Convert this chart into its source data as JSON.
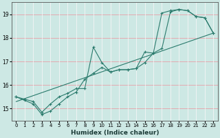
{
  "title": "",
  "xlabel": "Humidex (Indice chaleur)",
  "background_color": "#cde8e4",
  "line_color": "#2a7a6c",
  "grid_color": "#f0c0c8",
  "xlim": [
    -0.5,
    23.5
  ],
  "ylim": [
    14.5,
    19.5
  ],
  "xticks": [
    0,
    1,
    2,
    3,
    4,
    5,
    6,
    7,
    8,
    9,
    10,
    11,
    12,
    13,
    14,
    15,
    16,
    17,
    18,
    19,
    20,
    21,
    22,
    23
  ],
  "yticks": [
    15,
    16,
    17,
    18,
    19
  ],
  "series1_x": [
    0,
    1,
    2,
    3,
    4,
    5,
    6,
    7,
    8,
    9,
    10,
    11,
    12,
    13,
    14,
    15,
    16,
    17,
    18,
    19,
    20,
    21,
    22,
    23
  ],
  "series1_y": [
    15.5,
    15.4,
    15.3,
    14.85,
    15.2,
    15.5,
    15.65,
    15.85,
    15.85,
    17.6,
    16.95,
    16.55,
    16.65,
    16.65,
    16.7,
    17.4,
    17.35,
    19.05,
    19.15,
    19.2,
    19.15,
    18.9,
    18.85,
    18.2
  ],
  "series2_x": [
    0,
    1,
    2,
    3,
    4,
    5,
    6,
    7,
    8,
    9,
    10,
    11,
    12,
    13,
    14,
    15,
    16,
    17,
    18,
    19,
    20,
    21,
    22,
    23
  ],
  "series2_y": [
    15.5,
    15.35,
    15.2,
    14.75,
    14.9,
    15.2,
    15.5,
    15.7,
    16.25,
    16.5,
    16.75,
    16.55,
    16.65,
    16.65,
    16.7,
    16.95,
    17.35,
    17.55,
    19.1,
    19.2,
    19.15,
    18.9,
    18.85,
    18.2
  ],
  "trend_x": [
    0,
    23
  ],
  "trend_y": [
    15.3,
    18.2
  ]
}
